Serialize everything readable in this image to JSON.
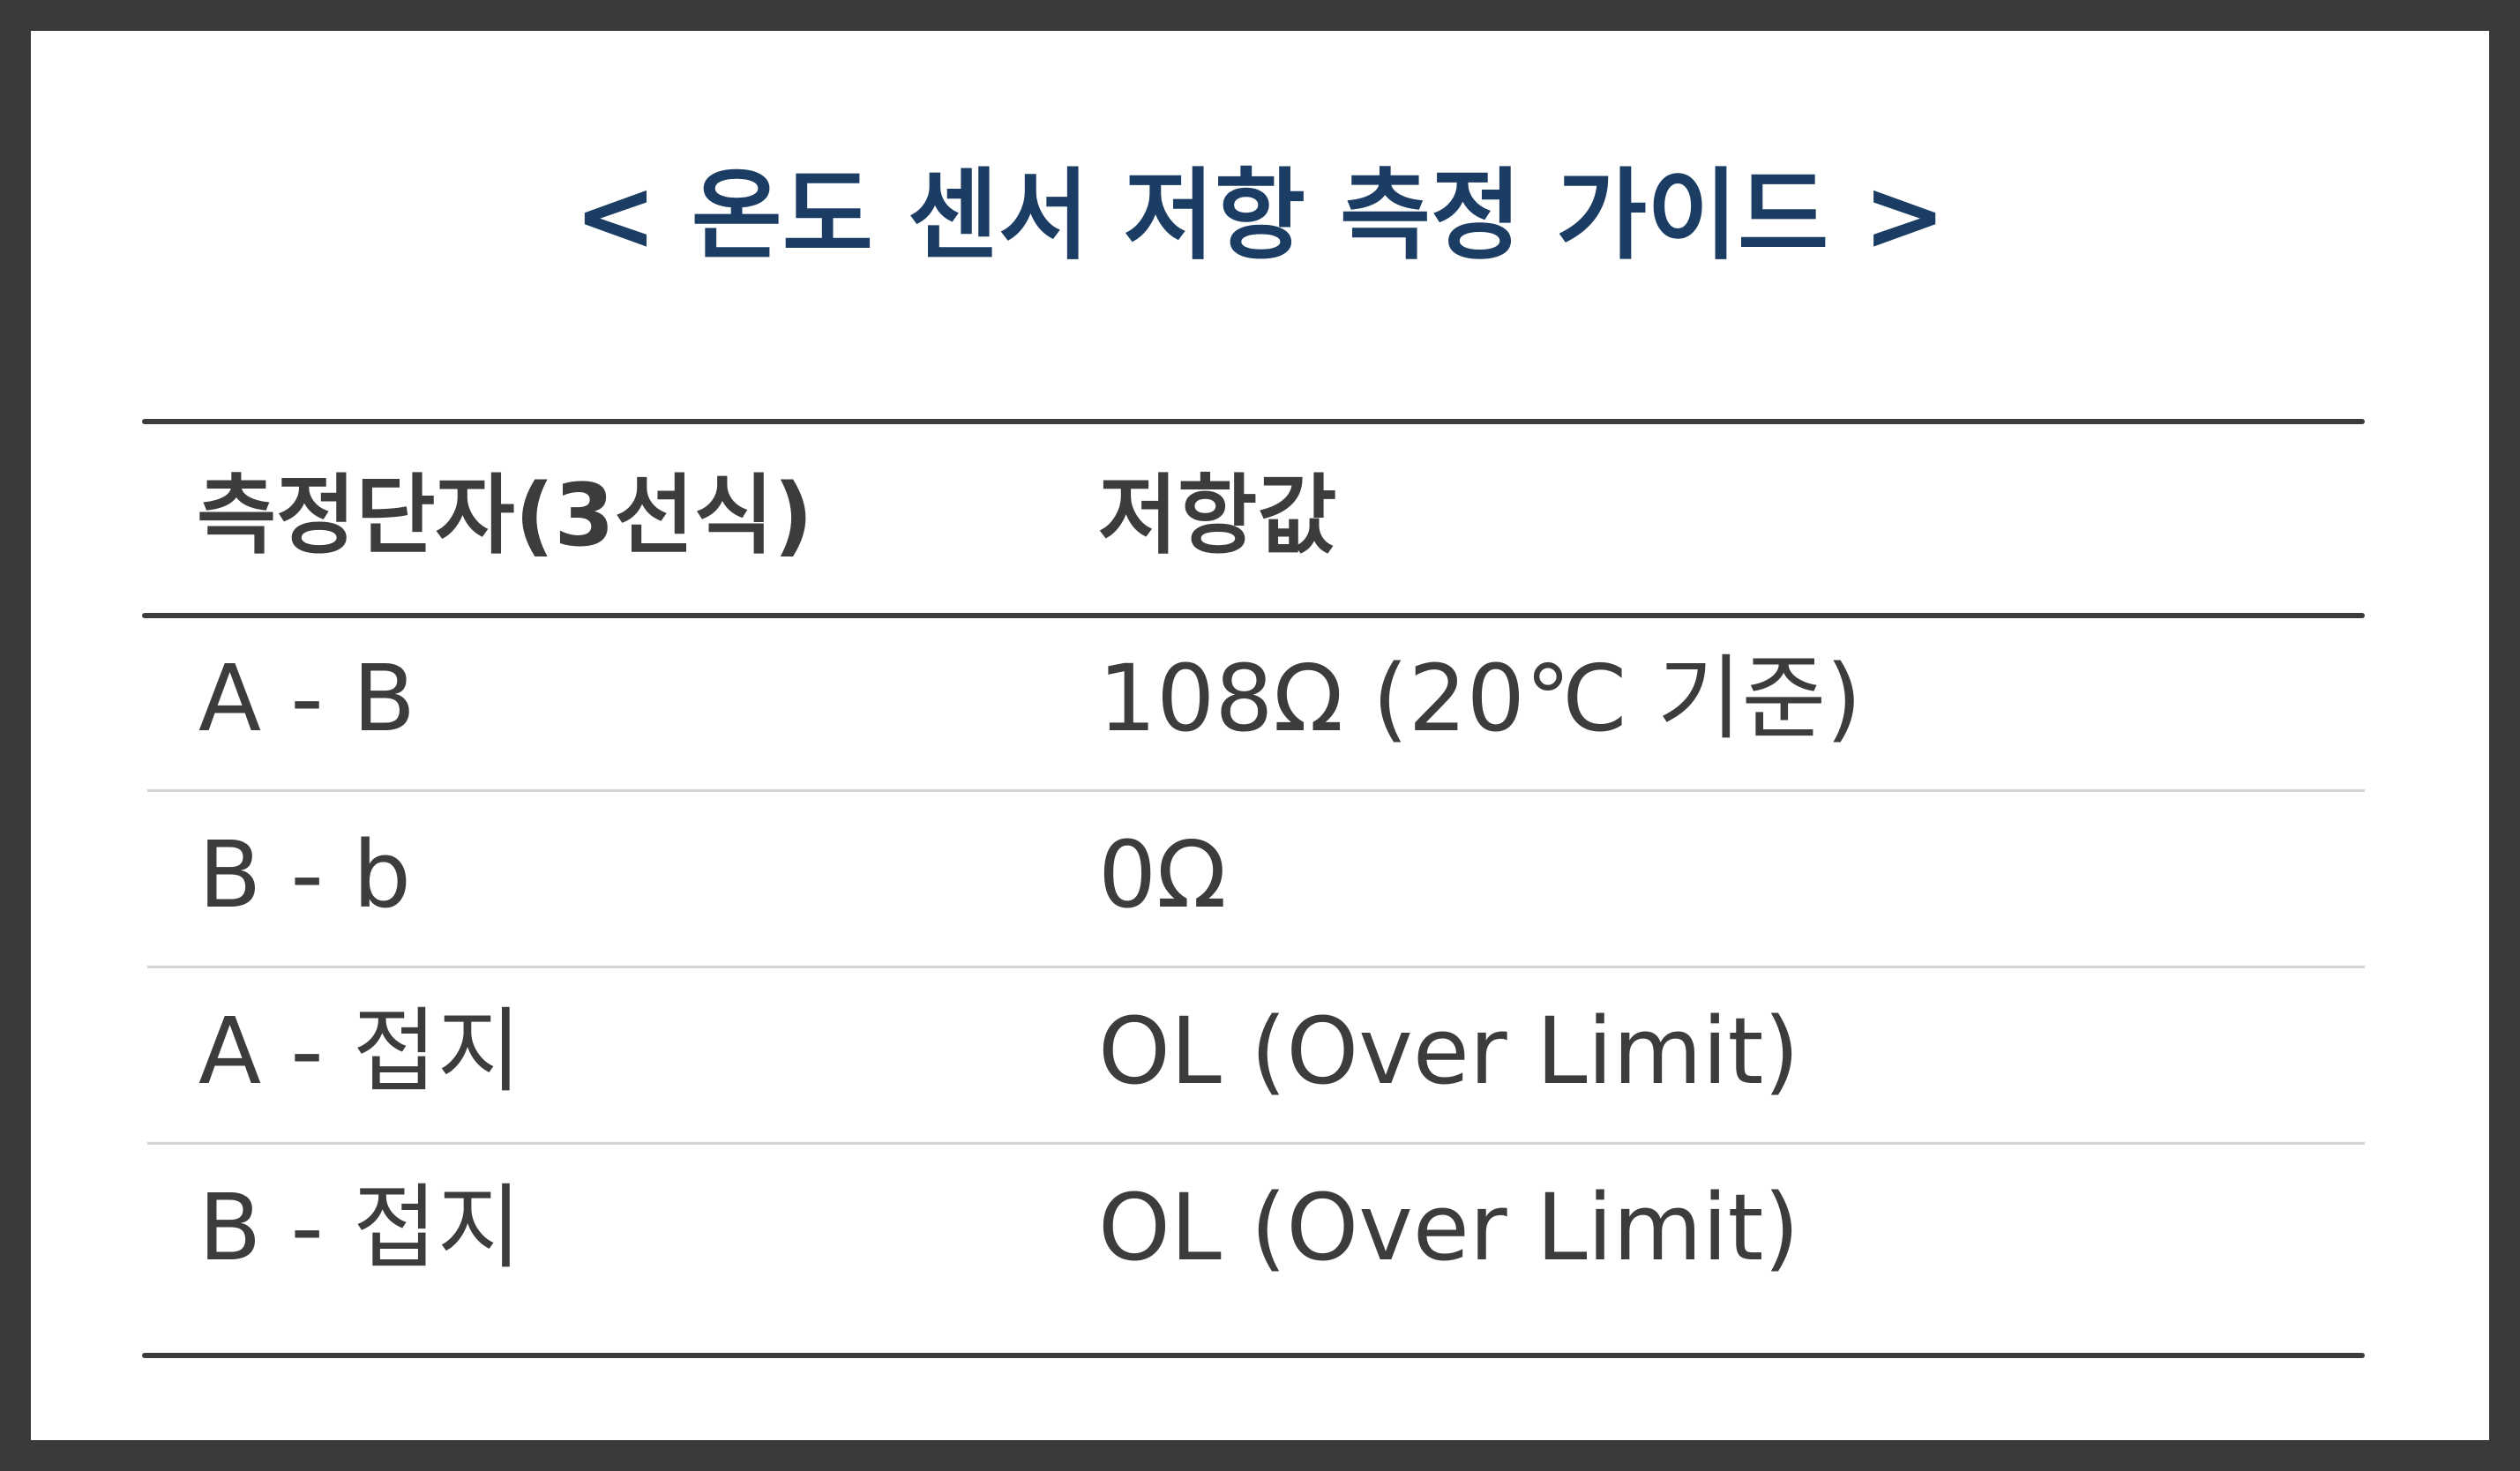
{
  "title": "< 온도 센서 저항 측정 가이드 >",
  "table": {
    "headers": [
      "측정단자(3선식)",
      "저항값"
    ],
    "rows": [
      [
        "A - B",
        "108Ω (20℃ 기준)"
      ],
      [
        "B - b",
        "0Ω"
      ],
      [
        "A - 접지",
        "OL (Over Limit)"
      ],
      [
        "B - 접지",
        "OL (Over Limit)"
      ]
    ]
  },
  "colors": {
    "title": "#1b3d63",
    "text": "#3c3c3c",
    "frame": "#3a3a3a",
    "background": "#ffffff",
    "row_divider": "#d4d4d4"
  }
}
